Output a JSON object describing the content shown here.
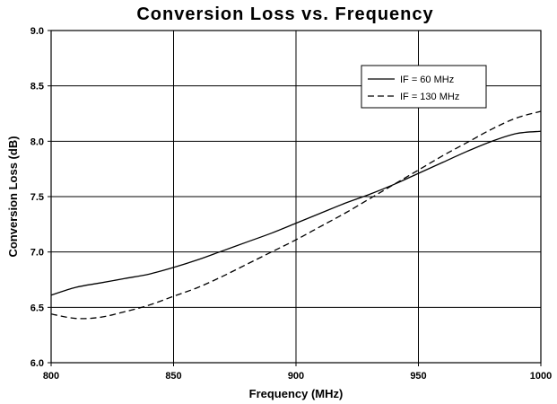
{
  "chart_data": {
    "type": "line",
    "title": "Conversion Loss vs. Frequency",
    "xlabel": "Frequency (MHz)",
    "ylabel": "Conversion Loss (dB)",
    "xlim": [
      800,
      1000
    ],
    "ylim": [
      6.0,
      9.0
    ],
    "x_ticks": [
      "800",
      "850",
      "900",
      "950",
      "1000"
    ],
    "y_ticks": [
      "6.0",
      "6.5",
      "7.0",
      "7.5",
      "8.0",
      "8.5",
      "9.0"
    ],
    "grid": true,
    "legend_position": "top-right",
    "series": [
      {
        "name": "IF = 60 MHz",
        "style": "solid",
        "color": "#000000",
        "x": [
          800,
          810,
          820,
          830,
          840,
          850,
          860,
          870,
          880,
          890,
          900,
          910,
          920,
          930,
          940,
          950,
          960,
          970,
          980,
          990,
          1000
        ],
        "y": [
          6.61,
          6.68,
          6.72,
          6.76,
          6.8,
          6.86,
          6.93,
          7.01,
          7.09,
          7.17,
          7.26,
          7.35,
          7.44,
          7.52,
          7.61,
          7.71,
          7.81,
          7.91,
          8.0,
          8.07,
          8.09
        ]
      },
      {
        "name": "IF = 130 MHz",
        "style": "dashed",
        "color": "#000000",
        "x": [
          800,
          810,
          820,
          830,
          840,
          850,
          860,
          870,
          880,
          890,
          900,
          910,
          920,
          930,
          940,
          950,
          960,
          970,
          980,
          990,
          1000
        ],
        "y": [
          6.44,
          6.4,
          6.41,
          6.46,
          6.52,
          6.6,
          6.68,
          6.78,
          6.89,
          7.0,
          7.11,
          7.23,
          7.35,
          7.48,
          7.61,
          7.74,
          7.87,
          7.99,
          8.11,
          8.21,
          8.27
        ]
      }
    ]
  }
}
